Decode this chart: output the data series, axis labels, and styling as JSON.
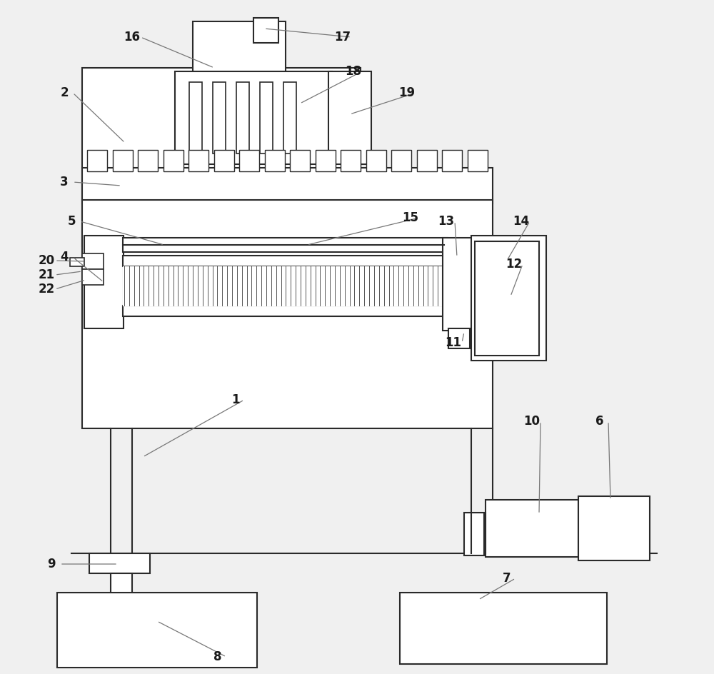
{
  "bg_color": "#f0f0f0",
  "line_color": "#2a2a2a",
  "label_color": "#1a1a1a",
  "leader_color": "#777777"
}
